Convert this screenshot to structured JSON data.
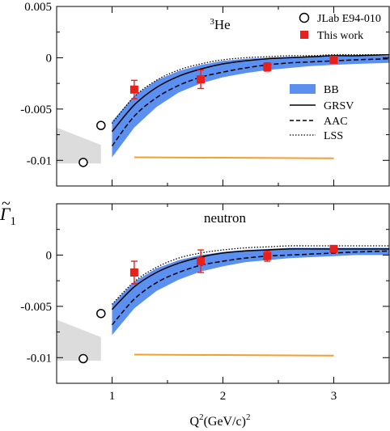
{
  "y_axis_label_main": "Γ",
  "y_axis_label_sub": "1",
  "x_axis_label": "Q²(GeV/c)²",
  "x_axis_label_parts": {
    "q": "Q",
    "sup1": "2",
    "mid": "(GeV/c)",
    "sup2": "2"
  },
  "legend": {
    "jlab": "JLab E94-010",
    "this_work": "This work",
    "bb": "BB",
    "grsv": "GRSV",
    "aac": "AAC",
    "lss": "LSS"
  },
  "colors": {
    "band": "#5b8ff0",
    "red": "#e8201c",
    "orange": "#f0a030",
    "gray_band": "#dcdcdc"
  },
  "chart_data": [
    {
      "type": "scatter",
      "panel": "top",
      "annotation": "³He",
      "annotation_parts": {
        "sup": "3",
        "main": "He"
      },
      "xlim": [
        0.5,
        3.5
      ],
      "ylim": [
        -0.0125,
        0.005
      ],
      "x_ticks": [
        1,
        2,
        3
      ],
      "x_tick_labels": [
        "",
        "",
        ""
      ],
      "y_ticks": [
        0.005,
        0,
        -0.005,
        -0.01
      ],
      "y_tick_labels": [
        "0.005",
        "0",
        "-0.005",
        "-0.01"
      ],
      "series": [
        {
          "name": "JLab E94-010",
          "marker": "open-circle",
          "points": [
            {
              "x": 0.74,
              "y": -0.0102,
              "err": 0.0003
            },
            {
              "x": 0.9,
              "y": -0.0066,
              "err": 0.0002
            }
          ]
        },
        {
          "name": "This work",
          "marker": "filled-square",
          "points": [
            {
              "x": 1.2,
              "y": -0.0031,
              "err": 0.0009
            },
            {
              "x": 1.8,
              "y": -0.0021,
              "err": 0.0009
            },
            {
              "x": 2.4,
              "y": -0.0009,
              "err": 0.0004
            },
            {
              "x": 3.0,
              "y": -0.0002,
              "err": 0.0002
            }
          ]
        },
        {
          "name": "BB",
          "style": "band",
          "x": [
            1.0,
            1.2,
            1.4,
            1.6,
            1.8,
            2.0,
            2.2,
            2.4,
            2.6,
            2.8,
            3.0,
            3.2,
            3.5
          ],
          "lower": [
            -0.0097,
            -0.0068,
            -0.0048,
            -0.0034,
            -0.0025,
            -0.0019,
            -0.0015,
            -0.0012,
            -0.001,
            -0.0008,
            -0.0007,
            -0.0006,
            -0.0005
          ],
          "upper": [
            -0.0062,
            -0.0037,
            -0.0022,
            -0.0013,
            -0.0007,
            -0.0003,
            -0.0001,
            0.0,
            0.0001,
            0.0001,
            0.0002,
            0.0002,
            0.0002
          ]
        },
        {
          "name": "GRSV",
          "style": "solid",
          "x": [
            1.0,
            1.2,
            1.4,
            1.6,
            1.8,
            2.0,
            2.2,
            2.4,
            2.6,
            2.8,
            3.0,
            3.2,
            3.5
          ],
          "y": [
            -0.0072,
            -0.0046,
            -0.0029,
            -0.0018,
            -0.0011,
            -0.0006,
            -0.0003,
            -0.0001,
            0.0,
            0.0001,
            0.0002,
            0.0002,
            0.0003
          ]
        },
        {
          "name": "AAC",
          "style": "dashed",
          "x": [
            1.0,
            1.2,
            1.4,
            1.6,
            1.8,
            2.0,
            2.2,
            2.4,
            2.6,
            2.8,
            3.0,
            3.2,
            3.5
          ],
          "y": [
            -0.0086,
            -0.0057,
            -0.0039,
            -0.0027,
            -0.0019,
            -0.0014,
            -0.001,
            -0.0007,
            -0.0005,
            -0.0004,
            -0.0003,
            -0.0002,
            -0.0001
          ]
        },
        {
          "name": "LSS",
          "style": "dotted",
          "x": [
            1.0,
            1.2,
            1.4,
            1.6,
            1.8,
            2.0,
            2.2,
            2.4,
            2.6,
            2.8,
            3.0,
            3.2,
            3.5
          ],
          "y": [
            -0.0064,
            -0.0038,
            -0.0022,
            -0.0012,
            -0.0006,
            -0.0002,
            0.0,
            0.0001,
            0.0002,
            0.0002,
            0.0003,
            0.0003,
            0.0003
          ]
        },
        {
          "name": "systematic",
          "style": "orange-line",
          "x": [
            1.2,
            3.0
          ],
          "y": [
            -0.0097,
            -0.0098
          ]
        },
        {
          "name": "low-Q2 band",
          "style": "gray-band",
          "x": [
            0.5,
            0.9
          ],
          "lower": [
            -0.0103,
            -0.0103
          ],
          "upper": [
            -0.0068,
            -0.0085
          ]
        }
      ]
    },
    {
      "type": "scatter",
      "panel": "bottom",
      "annotation": "neutron",
      "xlabel": "Q²(GeV/c)²",
      "xlim": [
        0.5,
        3.5
      ],
      "ylim": [
        -0.0125,
        0.005
      ],
      "x_ticks": [
        1,
        2,
        3
      ],
      "x_tick_labels": [
        "1",
        "2",
        "3"
      ],
      "y_ticks": [
        0,
        -0.005,
        -0.01
      ],
      "y_tick_labels": [
        "0",
        "-0.005",
        "-0.01"
      ],
      "series": [
        {
          "name": "JLab E94-010",
          "marker": "open-circle",
          "points": [
            {
              "x": 0.74,
              "y": -0.0101,
              "err": 0.0004
            },
            {
              "x": 0.9,
              "y": -0.0057,
              "err": 0.0003
            }
          ]
        },
        {
          "name": "This work",
          "marker": "filled-square",
          "points": [
            {
              "x": 1.2,
              "y": -0.0017,
              "err": 0.0011
            },
            {
              "x": 1.8,
              "y": -0.0006,
              "err": 0.0011
            },
            {
              "x": 2.4,
              "y": -0.0001,
              "err": 0.0005
            },
            {
              "x": 3.0,
              "y": 0.0006,
              "err": 0.0002
            }
          ]
        },
        {
          "name": "BB",
          "style": "band",
          "x": [
            1.0,
            1.2,
            1.4,
            1.6,
            1.8,
            2.0,
            2.2,
            2.4,
            2.6,
            2.8,
            3.0,
            3.2,
            3.5
          ],
          "lower": [
            -0.0078,
            -0.0052,
            -0.0035,
            -0.0024,
            -0.0016,
            -0.0011,
            -0.0007,
            -0.0005,
            -0.0003,
            -0.0002,
            -0.0001,
            0.0,
            0.0
          ],
          "upper": [
            -0.0048,
            -0.0026,
            -0.0013,
            -0.0005,
            0.0,
            0.0003,
            0.0005,
            0.0006,
            0.0007,
            0.0007,
            0.0007,
            0.0007,
            0.0007
          ]
        },
        {
          "name": "GRSV",
          "style": "solid",
          "x": [
            1.0,
            1.2,
            1.4,
            1.6,
            1.8,
            2.0,
            2.2,
            2.4,
            2.6,
            2.8,
            3.0,
            3.2,
            3.5
          ],
          "y": [
            -0.0053,
            -0.0031,
            -0.0017,
            -0.0008,
            -0.0002,
            0.0002,
            0.0004,
            0.0005,
            0.0006,
            0.0006,
            0.0006,
            0.0006,
            0.0006
          ]
        },
        {
          "name": "AAC",
          "style": "dashed",
          "x": [
            1.0,
            1.2,
            1.4,
            1.6,
            1.8,
            2.0,
            2.2,
            2.4,
            2.6,
            2.8,
            3.0,
            3.2,
            3.5
          ],
          "y": [
            -0.0068,
            -0.0043,
            -0.0027,
            -0.0017,
            -0.001,
            -0.0006,
            -0.0003,
            -0.0001,
            0.0,
            0.0001,
            0.0002,
            0.0003,
            0.0004
          ]
        },
        {
          "name": "LSS",
          "style": "dotted",
          "x": [
            1.0,
            1.2,
            1.4,
            1.6,
            1.8,
            2.0,
            2.2,
            2.4,
            2.6,
            2.8,
            3.0,
            3.2,
            3.5
          ],
          "y": [
            -0.0048,
            -0.0026,
            -0.0012,
            -0.0003,
            0.0002,
            0.0005,
            0.0007,
            0.0008,
            0.0009,
            0.0009,
            0.0009,
            0.0009,
            0.0009
          ]
        },
        {
          "name": "systematic",
          "style": "orange-line",
          "x": [
            1.2,
            3.0
          ],
          "y": [
            -0.0097,
            -0.0098
          ]
        },
        {
          "name": "low-Q2 band",
          "style": "gray-band",
          "x": [
            0.5,
            0.9
          ],
          "lower": [
            -0.0103,
            -0.0103
          ],
          "upper": [
            -0.0063,
            -0.008
          ]
        }
      ]
    }
  ]
}
